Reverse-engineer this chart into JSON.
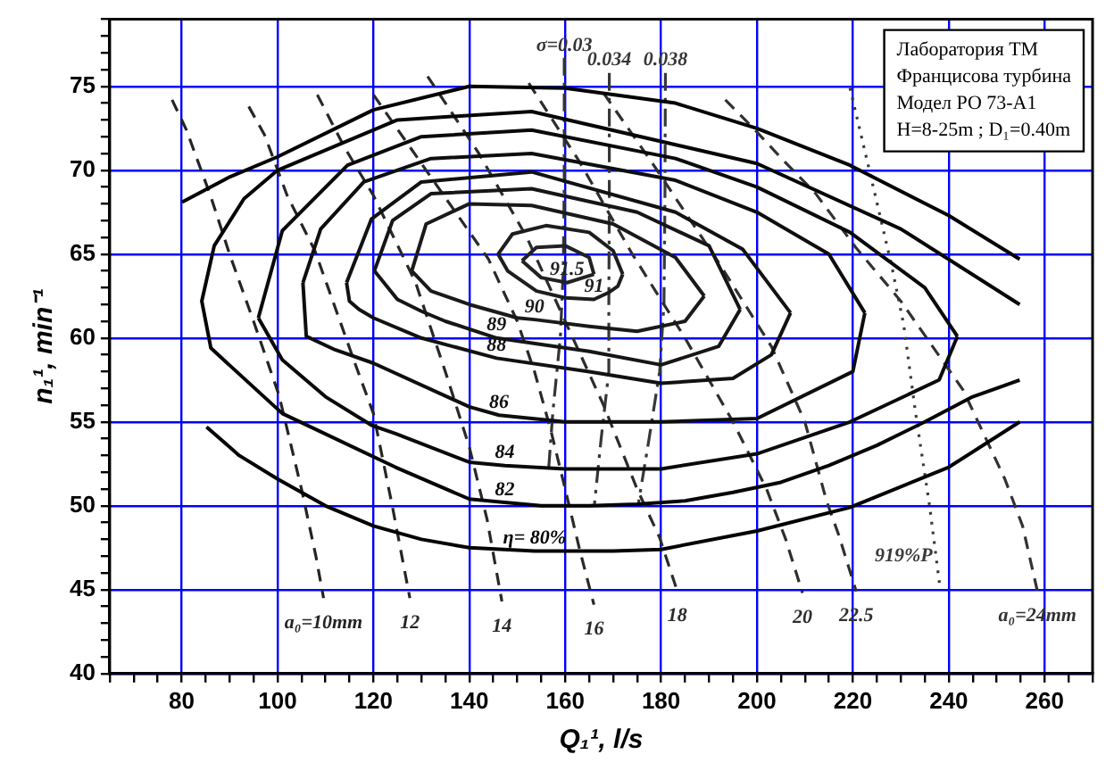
{
  "chart_data": {
    "type": "line",
    "xlabel": "Q₁¹, l/s",
    "ylabel": "n₁¹, min⁻¹",
    "xlim": [
      65,
      270
    ],
    "xticks": [
      {
        "value": 65,
        "label": null
      },
      {
        "value": 70,
        "label": null
      },
      {
        "value": 75,
        "label": null
      },
      80,
      {
        "value": 85,
        "label": null
      },
      {
        "value": 90,
        "label": null
      },
      {
        "value": 95,
        "label": null
      },
      100,
      {
        "value": 105,
        "label": null
      },
      {
        "value": 110,
        "label": null
      },
      {
        "value": 115,
        "label": null
      },
      120,
      {
        "value": 125,
        "label": null
      },
      {
        "value": 130,
        "label": null
      },
      {
        "value": 135,
        "label": null
      },
      140,
      {
        "value": 145,
        "label": null
      },
      {
        "value": 150,
        "label": null
      },
      {
        "value": 155,
        "label": null
      },
      160,
      {
        "value": 165,
        "label": null
      },
      {
        "value": 170,
        "label": null
      },
      {
        "value": 175,
        "label": null
      },
      180,
      {
        "value": 185,
        "label": null
      },
      {
        "value": 190,
        "label": null
      },
      {
        "value": 195,
        "label": null
      },
      200,
      {
        "value": 205,
        "label": null
      },
      {
        "value": 210,
        "label": null
      },
      {
        "value": 215,
        "label": null
      },
      220,
      {
        "value": 225,
        "label": null
      },
      {
        "value": 230,
        "label": null
      },
      {
        "value": 235,
        "label": null
      },
      240,
      {
        "value": 245,
        "label": null
      },
      {
        "value": 250,
        "label": null
      },
      {
        "value": 255,
        "label": null
      },
      260,
      {
        "value": 265,
        "label": null
      },
      {
        "value": 270,
        "label": null
      }
    ],
    "ylim": [
      40,
      79
    ],
    "yticks": [
      40,
      {
        "value": 41,
        "label": null
      },
      {
        "value": 42,
        "label": null
      },
      {
        "value": 43,
        "label": null
      },
      {
        "value": 44,
        "label": null
      },
      45,
      {
        "value": 46,
        "label": null
      },
      {
        "value": 47,
        "label": null
      },
      {
        "value": 48,
        "label": null
      },
      {
        "value": 49,
        "label": null
      },
      50,
      {
        "value": 51,
        "label": null
      },
      {
        "value": 52,
        "label": null
      },
      {
        "value": 53,
        "label": null
      },
      {
        "value": 54,
        "label": null
      },
      55,
      {
        "value": 56,
        "label": null
      },
      {
        "value": 57,
        "label": null
      },
      {
        "value": 58,
        "label": null
      },
      {
        "value": 59,
        "label": null
      },
      60,
      {
        "value": 61,
        "label": null
      },
      {
        "value": 62,
        "label": null
      },
      {
        "value": 63,
        "label": null
      },
      {
        "value": 64,
        "label": null
      },
      65,
      {
        "value": 66,
        "label": null
      },
      {
        "value": 67,
        "label": null
      },
      {
        "value": 68,
        "label": null
      },
      {
        "value": 69,
        "label": null
      },
      70,
      {
        "value": 71,
        "label": null
      },
      {
        "value": 72,
        "label": null
      },
      {
        "value": 73,
        "label": null
      },
      {
        "value": 74,
        "label": null
      },
      75,
      {
        "value": 76,
        "label": null
      },
      {
        "value": 77,
        "label": null
      },
      {
        "value": 78,
        "label": null
      },
      {
        "value": 79,
        "label": null
      }
    ],
    "grid": true,
    "legend": false,
    "marker": "none",
    "series": [
      {
        "name": "η= 80%",
        "color": "#020202",
        "line_style": "solid",
        "x": [
          80.1,
          90,
          100,
          120,
          140,
          160,
          183,
          200,
          219.4,
          240,
          254.8,
          null,
          85.2,
          92,
          100,
          110,
          120,
          130,
          140,
          153.6,
          170,
          180,
          200,
          219.4,
          240,
          254.8
        ],
        "values": [
          68.1,
          69.6,
          70.8,
          73.6,
          75.0,
          74.9,
          74.0,
          72.5,
          70.3,
          67.3,
          64.7,
          null,
          54.7,
          53.0,
          51.6,
          50.0,
          48.8,
          48.0,
          47.5,
          47.3,
          47.3,
          47.4,
          48.5,
          49.9,
          52.3,
          55.0
        ]
      },
      {
        "name": "82",
        "color": "#060606",
        "line_style": "solid",
        "x": [
          254.8,
          250,
          245,
          235,
          225,
          215,
          205,
          195,
          185,
          175,
          165,
          160,
          155,
          147.4,
          140,
          124.6,
          101,
          86.1,
          84.2,
          86.8,
          93,
          100,
          125,
          153,
          200,
          230,
          254.8
        ],
        "values": [
          57.5,
          57.0,
          56.5,
          55.0,
          53.6,
          52.4,
          51.4,
          50.8,
          50.3,
          50.1,
          50.0,
          50.0,
          50.0,
          50.2,
          50.4,
          52.3,
          55.5,
          59.4,
          62.2,
          65.5,
          68.3,
          70.0,
          73.0,
          73.5,
          70.4,
          66.5,
          62.0
        ]
      },
      {
        "name": "84",
        "color": "#0a0a0a",
        "line_style": "solid",
        "x": [
          96,
          101,
          114.6,
          130,
          153,
          183,
          200,
          219.4,
          235,
          241.8,
          null,
          96,
          101,
          110,
          119.6,
          124.6,
          140,
          147.4,
          160,
          180,
          200,
          219.4,
          238,
          241.8
        ],
        "values": [
          61.2,
          66.4,
          70.3,
          72.0,
          72.4,
          70.7,
          69.0,
          66.3,
          63.0,
          60.1,
          null,
          61.2,
          58.7,
          56.5,
          54.8,
          54.3,
          52.6,
          52.4,
          52.2,
          52.2,
          53.1,
          55.0,
          57.5,
          60.1
        ]
      },
      {
        "name": "86",
        "color": "#0e0e0e",
        "line_style": "solid",
        "x": [
          105.3,
          109,
          118,
          132,
          153,
          183,
          200,
          215,
          222.5,
          null,
          105.3,
          106,
          112,
          120,
          140,
          146.2,
          160,
          180,
          200,
          220,
          222.5
        ],
        "values": [
          63.3,
          66.5,
          69.3,
          70.7,
          71.0,
          69.4,
          67.5,
          65.0,
          61.5,
          null,
          63.3,
          60.1,
          59.3,
          58.5,
          55.9,
          55.4,
          55.0,
          55.0,
          55.2,
          58.0,
          61.5
        ]
      },
      {
        "name": "88",
        "color": "#121212",
        "line_style": "solid",
        "x": [
          114.4,
          119.6,
          130,
          153,
          183,
          197,
          207,
          null,
          114.4,
          115,
          117,
          120,
          130,
          145.7,
          165,
          180,
          195,
          203,
          207
        ],
        "values": [
          63.3,
          67.1,
          69.3,
          69.9,
          67.5,
          65.3,
          61.5,
          null,
          63.3,
          62.2,
          61.7,
          61.2,
          60.0,
          58.8,
          58.0,
          57.3,
          57.6,
          59.0,
          61.5
        ]
      },
      {
        "name": "89",
        "color": "#161616",
        "line_style": "solid",
        "x": [
          120.2,
          124,
          132,
          153,
          175,
          190,
          196.5,
          null,
          120.2,
          125,
          130,
          135,
          145.7,
          165,
          180,
          192,
          196.5
        ],
        "values": [
          64.0,
          67.0,
          68.6,
          68.9,
          67.5,
          65.5,
          61.7,
          null,
          64.0,
          62.3,
          61.6,
          61.0,
          60.0,
          59.2,
          58.4,
          59.5,
          61.7
        ]
      },
      {
        "name": "90",
        "color": "#1a1a1a",
        "line_style": "solid",
        "x": [
          128,
          131,
          140,
          153,
          170,
          183,
          189,
          null,
          128,
          132,
          140,
          150,
          153.6,
          165,
          175,
          185,
          189
        ],
        "values": [
          64.0,
          66.8,
          68.0,
          67.9,
          66.8,
          64.8,
          62.5,
          null,
          64.0,
          62.8,
          62.0,
          61.2,
          61.1,
          60.7,
          60.4,
          61.0,
          62.5
        ]
      },
      {
        "name": "91",
        "color": "#1e1e1e",
        "line_style": "solid",
        "x": [
          146,
          149,
          156,
          165,
          170,
          172,
          null,
          146,
          148,
          154,
          160,
          166,
          169,
          171,
          172
        ],
        "values": [
          65.0,
          66.2,
          66.7,
          66.3,
          65.2,
          63.8,
          null,
          65.0,
          64.0,
          62.8,
          62.4,
          62.3,
          62.7,
          63.1,
          63.8
        ]
      },
      {
        "name": "91.5",
        "color": "#222222",
        "line_style": "solid",
        "x": [
          151,
          154,
          160,
          165,
          166,
          null,
          151,
          155,
          160.4,
          166
        ],
        "values": [
          64.6,
          65.4,
          65.5,
          64.8,
          63.8,
          null,
          64.6,
          63.6,
          63.3,
          63.8
        ]
      },
      {
        "name": "a₀=10mm",
        "color": "#242424",
        "line_style": "dashed",
        "x": [
          78,
          81,
          86,
          90,
          95,
          100.3,
          105,
          108,
          109.6
        ],
        "values": [
          74.2,
          72.4,
          68.5,
          65.0,
          61.0,
          56.6,
          51.0,
          47.0,
          44.5
        ]
      },
      {
        "name": "12",
        "color": "#262626",
        "line_style": "dashed",
        "x": [
          94,
          97.3,
          102,
          107.8,
          116.4,
          120,
          124,
          127.6
        ],
        "values": [
          73.8,
          72.1,
          68.5,
          65.2,
          58.3,
          55.5,
          49.9,
          44.5
        ]
      },
      {
        "name": "14",
        "color": "#282828",
        "line_style": "dashed",
        "x": [
          108.3,
          113.9,
          120,
          128.8,
          135,
          140,
          143.7,
          146.8
        ],
        "values": [
          74.5,
          71.4,
          68.5,
          63.3,
          58.0,
          53.5,
          49.2,
          44.3
        ]
      },
      {
        "name": "16",
        "color": "#2a2a2a",
        "line_style": "dashed",
        "x": [
          120,
          131,
          144,
          150,
          153.6,
          157,
          160,
          163,
          166
        ],
        "values": [
          74.5,
          70.0,
          64.7,
          61.0,
          58.0,
          54.5,
          51.0,
          47.4,
          44.1
        ]
      },
      {
        "name": "18",
        "color": "#2c2c2c",
        "line_style": "dashed",
        "x": [
          131.3,
          142,
          152,
          160,
          168,
          175,
          179.7,
          183.4
        ],
        "values": [
          75.6,
          71.0,
          66.0,
          61.0,
          56.0,
          51.0,
          48.1,
          44.9
        ]
      },
      {
        "name": "20",
        "color": "#2e2e2e",
        "line_style": "dashed",
        "x": [
          152.4,
          163,
          174,
          185,
          195,
          202,
          206,
          209.5
        ],
        "values": [
          75.2,
          70.5,
          65.0,
          60.0,
          55.0,
          51.0,
          48.0,
          44.8
        ]
      },
      {
        "name": "22.5",
        "color": "#303030",
        "line_style": "dashed",
        "x": [
          168,
          178,
          192,
          203,
          210,
          214.5,
          217,
          220.7
        ],
        "values": [
          74.6,
          70.5,
          64.5,
          59.5,
          55.0,
          50.3,
          48.3,
          44.9
        ]
      },
      {
        "name": "a₀=24mm",
        "color": "#323232",
        "line_style": "dashed",
        "x": [
          193.4,
          199.6,
          205.8,
          212,
          220.6,
          230,
          243,
          251.7,
          255.4,
          258.5
        ],
        "values": [
          74.2,
          72.4,
          70.5,
          68.7,
          65.4,
          62.2,
          56.9,
          51.6,
          48.8,
          44.9
        ]
      },
      {
        "name": "σ=0.03",
        "color": "#343434",
        "line_style": "dashdot",
        "x": [
          159.8,
          159.8,
          159.6,
          159,
          157.4,
          156.5
        ],
        "values": [
          76.7,
          69.3,
          64.0,
          60.1,
          55.5,
          52.0
        ]
      },
      {
        "name": "0.034",
        "color": "#363636",
        "line_style": "dashdot",
        "x": [
          169.2,
          169.2,
          169.1,
          169.1,
          167.5,
          166.1
        ],
        "values": [
          75.8,
          68.0,
          62.0,
          58.0,
          54.0,
          50.1
        ]
      },
      {
        "name": "0.038",
        "color": "#383838",
        "line_style": "dashdot",
        "x": [
          180.9,
          180.8,
          180.6,
          179.7,
          177.5,
          175.3
        ],
        "values": [
          75.8,
          68.0,
          62.0,
          58.0,
          54.0,
          50.2
        ]
      },
      {
        "name": "919%P",
        "color": "#3a3a3a",
        "line_style": "dotted",
        "x": [
          219.4,
          223.2,
          228.1,
          230.6,
          233.1,
          236,
          238.1
        ],
        "values": [
          74.9,
          70.3,
          64.3,
          60.8,
          55.5,
          50.0,
          45.3
        ]
      }
    ],
    "annotations": [
      "Лаборатория ТМ",
      "Францисова турбина",
      "Модел РО 73-А1",
      "H=8-25m ; D₁=0.40m"
    ]
  }
}
